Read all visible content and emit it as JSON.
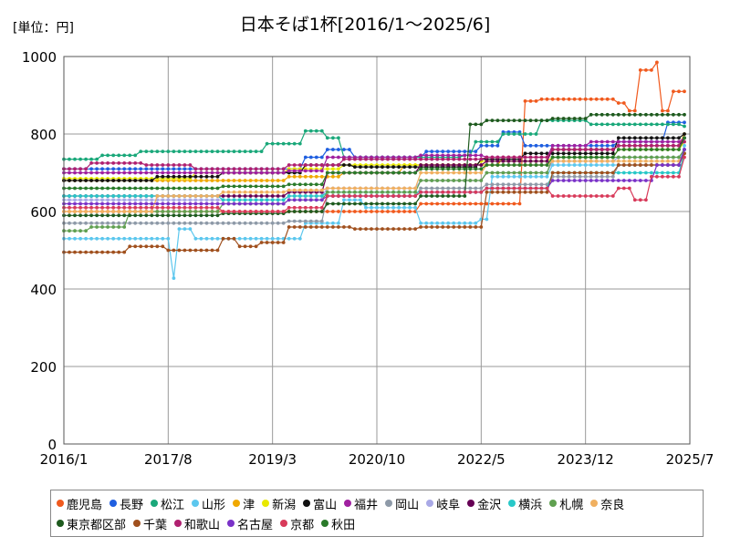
{
  "chart_data": {
    "type": "line",
    "title": "日本そば1杯[2016/1～2025/6]",
    "unit_label": "[単位：円]",
    "xlabel": "",
    "ylabel": "",
    "x_range": [
      "2016-01",
      "2025-07"
    ],
    "x_ticks": [
      "2016/1",
      "2017/8",
      "2019/3",
      "2020/10",
      "2022/5",
      "2023/12",
      "2025/7"
    ],
    "ylim": [
      0,
      1000
    ],
    "y_ticks": [
      0,
      200,
      400,
      600,
      800,
      1000
    ],
    "grid": true,
    "legend_position": "bottom",
    "series": [
      {
        "name": "鹿児島",
        "color": "#f05a1e",
        "points": [
          [
            "2016-01",
            600
          ],
          [
            "2021-06",
            620
          ],
          [
            "2023-01",
            885
          ],
          [
            "2023-04",
            890
          ],
          [
            "2024-06",
            880
          ],
          [
            "2024-08",
            860
          ],
          [
            "2024-10",
            965
          ],
          [
            "2025-01",
            985
          ],
          [
            "2025-02",
            860
          ],
          [
            "2025-04",
            910
          ],
          [
            "2025-06",
            910
          ]
        ]
      },
      {
        "name": "長野",
        "color": "#1f5fe0",
        "points": [
          [
            "2016-01",
            710
          ],
          [
            "2019-09",
            740
          ],
          [
            "2020-01",
            760
          ],
          [
            "2020-06",
            740
          ],
          [
            "2021-07",
            755
          ],
          [
            "2022-05",
            770
          ],
          [
            "2022-09",
            805
          ],
          [
            "2023-01",
            770
          ],
          [
            "2024-06",
            780
          ],
          [
            "2025-03",
            830
          ],
          [
            "2025-06",
            830
          ]
        ]
      },
      {
        "name": "松江",
        "color": "#1aa87a",
        "points": [
          [
            "2016-01",
            735
          ],
          [
            "2016-08",
            745
          ],
          [
            "2017-03",
            755
          ],
          [
            "2019-02",
            775
          ],
          [
            "2019-09",
            808
          ],
          [
            "2020-01",
            790
          ],
          [
            "2020-04",
            740
          ],
          [
            "2022-02",
            745
          ],
          [
            "2022-04",
            780
          ],
          [
            "2022-09",
            800
          ],
          [
            "2023-04",
            835
          ],
          [
            "2024-01",
            825
          ],
          [
            "2025-06",
            820
          ]
        ]
      },
      {
        "name": "山形",
        "color": "#5cc7ee",
        "points": [
          [
            "2016-01",
            530
          ],
          [
            "2017-08",
            530
          ],
          [
            "2017-09",
            428
          ],
          [
            "2017-10",
            555
          ],
          [
            "2018-01",
            530
          ],
          [
            "2019-06",
            530
          ],
          [
            "2019-09",
            570
          ],
          [
            "2020-04",
            630
          ],
          [
            "2020-08",
            610
          ],
          [
            "2021-06",
            570
          ],
          [
            "2022-05",
            580
          ],
          [
            "2022-07",
            690
          ],
          [
            "2023-06",
            720
          ],
          [
            "2025-06",
            770
          ]
        ]
      },
      {
        "name": "津",
        "color": "#f0a800",
        "points": [
          [
            "2016-01",
            680
          ],
          [
            "2019-06",
            690
          ],
          [
            "2020-04",
            700
          ],
          [
            "2021-03",
            720
          ],
          [
            "2022-09",
            740
          ],
          [
            "2023-06",
            760
          ],
          [
            "2024-06",
            770
          ],
          [
            "2025-06",
            800
          ]
        ]
      },
      {
        "name": "新潟",
        "color": "#e8e800",
        "points": [
          [
            "2016-01",
            685
          ],
          [
            "2018-01",
            700
          ],
          [
            "2019-06",
            710
          ],
          [
            "2020-04",
            720
          ],
          [
            "2022-05",
            730
          ],
          [
            "2023-06",
            740
          ],
          [
            "2024-06",
            760
          ],
          [
            "2025-06",
            780
          ]
        ]
      },
      {
        "name": "富山",
        "color": "#111111",
        "points": [
          [
            "2016-01",
            680
          ],
          [
            "2017-06",
            690
          ],
          [
            "2018-06",
            700
          ],
          [
            "2019-09",
            720
          ],
          [
            "2020-06",
            715
          ],
          [
            "2022-05",
            735
          ],
          [
            "2023-01",
            750
          ],
          [
            "2024-06",
            790
          ],
          [
            "2025-06",
            800
          ]
        ]
      },
      {
        "name": "福井",
        "color": "#a020a0",
        "points": [
          [
            "2016-01",
            700
          ],
          [
            "2019-06",
            705
          ],
          [
            "2020-01",
            740
          ],
          [
            "2021-06",
            745
          ],
          [
            "2022-06",
            740
          ],
          [
            "2023-06",
            770
          ],
          [
            "2024-01",
            780
          ],
          [
            "2025-06",
            790
          ]
        ]
      },
      {
        "name": "岡山",
        "color": "#8e9aa8",
        "points": [
          [
            "2016-01",
            570
          ],
          [
            "2019-06",
            575
          ],
          [
            "2020-01",
            640
          ],
          [
            "2021-06",
            660
          ],
          [
            "2022-06",
            670
          ],
          [
            "2023-06",
            690
          ],
          [
            "2024-06",
            720
          ],
          [
            "2025-06",
            760
          ]
        ]
      },
      {
        "name": "岐阜",
        "color": "#a9a9e6",
        "points": [
          [
            "2016-01",
            630
          ],
          [
            "2019-06",
            640
          ],
          [
            "2020-01",
            660
          ],
          [
            "2021-06",
            680
          ],
          [
            "2022-06",
            700
          ],
          [
            "2023-06",
            730
          ],
          [
            "2024-06",
            740
          ],
          [
            "2025-06",
            760
          ]
        ]
      },
      {
        "name": "金沢",
        "color": "#660055",
        "points": [
          [
            "2016-01",
            640
          ],
          [
            "2019-06",
            650
          ],
          [
            "2020-01",
            700
          ],
          [
            "2021-06",
            720
          ],
          [
            "2022-06",
            730
          ],
          [
            "2023-06",
            760
          ],
          [
            "2024-06",
            770
          ],
          [
            "2025-06",
            790
          ]
        ]
      },
      {
        "name": "横浜",
        "color": "#28c8c8",
        "points": [
          [
            "2016-01",
            640
          ],
          [
            "2018-06",
            630
          ],
          [
            "2019-06",
            640
          ],
          [
            "2020-01",
            650
          ],
          [
            "2021-06",
            650
          ],
          [
            "2022-06",
            660
          ],
          [
            "2023-06",
            700
          ],
          [
            "2025-06",
            750
          ]
        ]
      },
      {
        "name": "札幌",
        "color": "#60a050",
        "points": [
          [
            "2016-01",
            550
          ],
          [
            "2016-06",
            560
          ],
          [
            "2017-01",
            600
          ],
          [
            "2018-06",
            620
          ],
          [
            "2019-06",
            630
          ],
          [
            "2020-01",
            650
          ],
          [
            "2021-06",
            680
          ],
          [
            "2022-06",
            700
          ],
          [
            "2023-06",
            740
          ],
          [
            "2025-06",
            760
          ]
        ]
      },
      {
        "name": "奈良",
        "color": "#f0b060",
        "points": [
          [
            "2016-01",
            600
          ],
          [
            "2017-06",
            640
          ],
          [
            "2018-06",
            650
          ],
          [
            "2019-06",
            655
          ],
          [
            "2020-01",
            660
          ],
          [
            "2021-06",
            700
          ],
          [
            "2022-06",
            720
          ],
          [
            "2023-06",
            730
          ],
          [
            "2025-06",
            750
          ]
        ]
      },
      {
        "name": "東京都区部",
        "color": "#1e5a1e",
        "points": [
          [
            "2016-01",
            590
          ],
          [
            "2018-06",
            595
          ],
          [
            "2019-06",
            600
          ],
          [
            "2020-01",
            620
          ],
          [
            "2021-06",
            640
          ],
          [
            "2022-03",
            825
          ],
          [
            "2022-06",
            835
          ],
          [
            "2023-06",
            840
          ],
          [
            "2024-01",
            850
          ],
          [
            "2025-06",
            850
          ]
        ]
      },
      {
        "name": "千葉",
        "color": "#a0501e",
        "points": [
          [
            "2016-01",
            495
          ],
          [
            "2017-01",
            510
          ],
          [
            "2017-08",
            500
          ],
          [
            "2018-06",
            530
          ],
          [
            "2018-09",
            510
          ],
          [
            "2019-01",
            520
          ],
          [
            "2019-06",
            560
          ],
          [
            "2020-06",
            555
          ],
          [
            "2021-06",
            560
          ],
          [
            "2022-06",
            650
          ],
          [
            "2023-06",
            700
          ],
          [
            "2024-06",
            720
          ],
          [
            "2025-06",
            750
          ]
        ]
      },
      {
        "name": "和歌山",
        "color": "#b02070",
        "points": [
          [
            "2016-01",
            710
          ],
          [
            "2016-06",
            725
          ],
          [
            "2017-04",
            720
          ],
          [
            "2018-01",
            710
          ],
          [
            "2019-06",
            720
          ],
          [
            "2020-04",
            735
          ],
          [
            "2022-06",
            740
          ],
          [
            "2023-06",
            760
          ],
          [
            "2024-06",
            770
          ],
          [
            "2025-06",
            780
          ]
        ]
      },
      {
        "name": "名古屋",
        "color": "#7a32c8",
        "points": [
          [
            "2016-01",
            620
          ],
          [
            "2019-06",
            630
          ],
          [
            "2020-01",
            640
          ],
          [
            "2021-06",
            650
          ],
          [
            "2022-06",
            660
          ],
          [
            "2023-06",
            680
          ],
          [
            "2024-01",
            680
          ],
          [
            "2025-01",
            720
          ],
          [
            "2025-06",
            760
          ]
        ]
      },
      {
        "name": "京都",
        "color": "#d83a5a",
        "points": [
          [
            "2016-01",
            610
          ],
          [
            "2018-06",
            600
          ],
          [
            "2019-06",
            610
          ],
          [
            "2020-01",
            640
          ],
          [
            "2021-06",
            650
          ],
          [
            "2022-06",
            660
          ],
          [
            "2023-06",
            640
          ],
          [
            "2024-06",
            660
          ],
          [
            "2024-09",
            630
          ],
          [
            "2024-12",
            690
          ],
          [
            "2025-06",
            740
          ]
        ]
      },
      {
        "name": "秋田",
        "color": "#2a7a2a",
        "points": [
          [
            "2016-01",
            660
          ],
          [
            "2018-06",
            665
          ],
          [
            "2019-06",
            670
          ],
          [
            "2020-01",
            700
          ],
          [
            "2021-06",
            710
          ],
          [
            "2022-06",
            720
          ],
          [
            "2023-06",
            740
          ],
          [
            "2024-06",
            760
          ],
          [
            "2025-06",
            790
          ]
        ]
      }
    ]
  }
}
